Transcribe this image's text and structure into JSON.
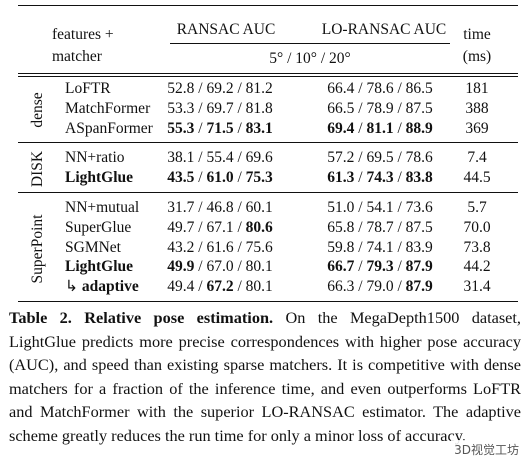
{
  "header": {
    "features": "features +",
    "matcher": "matcher",
    "ransac": "RANSAC AUC",
    "lo_ransac": "LO-RANSAC AUC",
    "thresholds": "5° / 10° / 20°",
    "time": "time",
    "time_unit": "(ms)"
  },
  "separator": " / ",
  "groups": [
    {
      "name": "dense",
      "rows": [
        {
          "method": "LoFTR",
          "ransac": [
            "52.8",
            "69.2",
            "81.2"
          ],
          "lo_ransac": [
            "66.4",
            "78.6",
            "86.5"
          ],
          "time": "181"
        },
        {
          "method": "MatchFormer",
          "ransac": [
            "53.3",
            "69.7",
            "81.8"
          ],
          "lo_ransac": [
            "66.5",
            "78.9",
            "87.5"
          ],
          "time": "388"
        },
        {
          "method": "ASpanFormer",
          "ransac": [
            "55.3",
            "71.5",
            "83.1"
          ],
          "lo_ransac": [
            "69.4",
            "81.1",
            "88.9"
          ],
          "time": "369",
          "ransac_bold": [
            true,
            true,
            true
          ],
          "lo_ransac_bold": [
            true,
            true,
            true
          ]
        }
      ]
    },
    {
      "name": "DISK",
      "rows": [
        {
          "method": "NN+ratio",
          "ransac": [
            "38.1",
            "55.4",
            "69.6"
          ],
          "lo_ransac": [
            "57.2",
            "69.5",
            "78.6"
          ],
          "time": "7.4"
        },
        {
          "method": "LightGlue",
          "ransac": [
            "43.5",
            "61.0",
            "75.3"
          ],
          "lo_ransac": [
            "61.3",
            "74.3",
            "83.8"
          ],
          "time": "44.5",
          "method_bold": true,
          "ransac_bold": [
            true,
            true,
            true
          ],
          "lo_ransac_bold": [
            true,
            true,
            true
          ]
        }
      ]
    },
    {
      "name": "SuperPoint",
      "rows": [
        {
          "method": "NN+mutual",
          "ransac": [
            "31.7",
            "46.8",
            "60.1"
          ],
          "lo_ransac": [
            "51.0",
            "54.1",
            "73.6"
          ],
          "time": "5.7"
        },
        {
          "method": "SuperGlue",
          "ransac": [
            "49.7",
            "67.1",
            "80.6"
          ],
          "lo_ransac": [
            "65.8",
            "78.7",
            "87.5"
          ],
          "time": "70.0",
          "ransac_bold": [
            false,
            false,
            true
          ]
        },
        {
          "method": "SGMNet",
          "ransac": [
            "43.2",
            "61.6",
            "75.6"
          ],
          "lo_ransac": [
            "59.8",
            "74.1",
            "83.9"
          ],
          "time": "73.8"
        },
        {
          "method": "LightGlue",
          "ransac": [
            "49.9",
            "67.0",
            "80.1"
          ],
          "lo_ransac": [
            "66.7",
            "79.3",
            "87.9"
          ],
          "time": "44.2",
          "method_bold": true,
          "ransac_bold": [
            true,
            false,
            false
          ],
          "lo_ransac_bold": [
            true,
            true,
            true
          ]
        },
        {
          "prefix": "↳",
          "method": "adaptive",
          "ransac": [
            "49.4",
            "67.2",
            "80.1"
          ],
          "lo_ransac": [
            "66.3",
            "79.0",
            "87.9"
          ],
          "time": "31.4",
          "method_bold": true,
          "ransac_bold": [
            false,
            true,
            false
          ],
          "lo_ransac_bold": [
            false,
            false,
            true
          ]
        }
      ]
    }
  ],
  "caption": {
    "label": "Table 2.",
    "title": "Relative pose estimation.",
    "text": "On the MegaDepth1500 dataset, LightGlue predicts more precise correspondences with higher pose accuracy (AUC), and speed than existing sparse matchers. It is competitive with dense matchers for a fraction of the inference time, and even outperforms LoFTR and MatchFormer with the superior LO-RANSAC estimator. The adaptive scheme greatly reduces the run time for only a minor loss of accuracy."
  },
  "watermark": "3D视觉工坊"
}
